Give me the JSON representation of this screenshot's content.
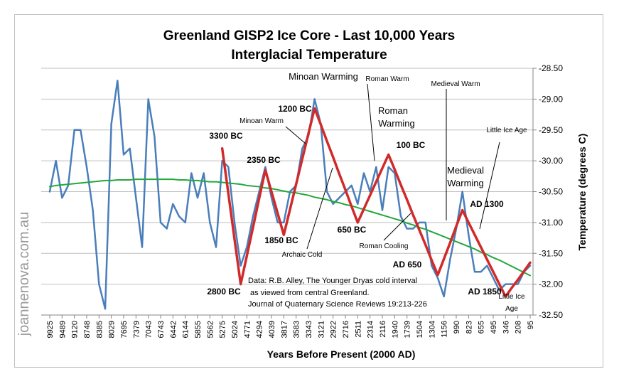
{
  "chart_data": {
    "type": "line",
    "title": [
      "Greenland GISP2 Ice Core - Last 10,000 Years",
      "Interglacial Temperature"
    ],
    "x_label": "Years Before Present (2000 AD)",
    "y_label": "Temperature (degrees C)",
    "watermark": "joannenova.com.au",
    "categories": [
      "9925",
      null,
      "9489",
      null,
      "9120",
      null,
      "8748",
      null,
      "8385",
      null,
      "8029",
      null,
      "7695",
      null,
      "7379",
      null,
      "7043",
      null,
      "6743",
      null,
      "6442",
      null,
      "6144",
      null,
      "5855",
      null,
      "5562",
      null,
      "5275",
      null,
      "5024",
      null,
      "4771",
      null,
      "4294",
      null,
      "4039",
      null,
      "3817",
      null,
      "3583",
      null,
      "3343",
      null,
      "3121",
      null,
      "2922",
      null,
      "2716",
      null,
      "2511",
      null,
      "2314",
      null,
      "2116",
      null,
      "1940",
      null,
      "1739",
      null,
      "1504",
      null,
      "1304",
      null,
      "1156",
      null,
      "990",
      null,
      "823",
      null,
      "655",
      null,
      "495",
      null,
      "346",
      null,
      "208",
      null,
      "95"
    ],
    "series": [
      {
        "color": "#4a7ebb",
        "width": 2.5,
        "values": [
          -30.5,
          -30.0,
          -30.6,
          -30.4,
          -29.5,
          -29.5,
          -30.1,
          -30.8,
          -32.0,
          -32.4,
          -29.4,
          -28.7,
          -29.9,
          -29.8,
          -30.6,
          -31.4,
          -29.0,
          -29.6,
          -31.0,
          -31.1,
          -30.7,
          -30.9,
          -31.0,
          -30.2,
          -30.6,
          -30.2,
          -31.0,
          -31.4,
          -30.0,
          -30.1,
          -31.0,
          -31.7,
          -31.4,
          -30.9,
          -30.5,
          -30.1,
          -30.6,
          -31.0,
          -31.0,
          -30.5,
          -30.4,
          -29.8,
          -29.6,
          -29.0,
          -29.4,
          -30.5,
          -30.7,
          -30.6,
          -30.5,
          -30.4,
          -30.7,
          -30.2,
          -30.5,
          -30.1,
          -30.8,
          -30.1,
          -30.2,
          -30.9,
          -31.1,
          -31.1,
          -31.0,
          -31.0,
          -31.7,
          -31.9,
          -32.2,
          -31.6,
          -31.1,
          -30.5,
          -31.2,
          -31.8,
          -31.8,
          -31.7,
          -31.9,
          -32.1,
          -32.0,
          -32.0,
          -32.0,
          -31.8,
          -31.7
        ]
      },
      {
        "color": "#22a83a",
        "width": 2,
        "values": [
          -30.42,
          -30.4,
          -30.39,
          -30.38,
          -30.37,
          -30.36,
          -30.35,
          -30.34,
          -30.33,
          -30.32,
          -30.32,
          -30.31,
          -30.31,
          -30.31,
          -30.3,
          -30.3,
          -30.3,
          -30.3,
          -30.3,
          -30.3,
          -30.3,
          -30.31,
          -30.31,
          -30.32,
          -30.32,
          -30.33,
          -30.34,
          -30.34,
          -30.35,
          -30.36,
          -30.37,
          -30.38,
          -30.4,
          -30.41,
          -30.42,
          -30.44,
          -30.45,
          -30.47,
          -30.49,
          -30.51,
          -30.52,
          -30.54,
          -30.56,
          -30.59,
          -30.61,
          -30.63,
          -30.66,
          -30.68,
          -30.71,
          -30.73,
          -30.76,
          -30.79,
          -30.82,
          -30.85,
          -30.88,
          -30.91,
          -30.94,
          -30.97,
          -31.01,
          -31.04,
          -31.08,
          -31.11,
          -31.15,
          -31.19,
          -31.23,
          -31.27,
          -31.31,
          -31.35,
          -31.39,
          -31.43,
          -31.48,
          -31.52,
          -31.57,
          -31.61,
          -31.66,
          -31.71,
          -31.76,
          -31.81,
          -31.86
        ]
      },
      {
        "color": "#d02a2a",
        "width": 3.5,
        "values": [
          null,
          null,
          null,
          null,
          null,
          null,
          null,
          null,
          null,
          null,
          null,
          null,
          null,
          null,
          null,
          null,
          null,
          null,
          null,
          null,
          null,
          null,
          null,
          null,
          null,
          null,
          null,
          null,
          -29.8,
          -30.53,
          -31.27,
          -32.0,
          -31.54,
          -31.08,
          -30.61,
          -30.15,
          -30.5,
          -30.85,
          -31.2,
          -30.79,
          -30.38,
          -29.97,
          -29.56,
          -29.15,
          -29.41,
          -29.68,
          -29.94,
          -30.21,
          -30.47,
          -30.74,
          -31.0,
          -30.78,
          -30.56,
          -30.34,
          -30.12,
          -29.9,
          -30.14,
          -30.39,
          -30.63,
          -30.88,
          -31.12,
          -31.36,
          -31.61,
          -31.85,
          -31.59,
          -31.33,
          -31.06,
          -30.8,
          -31.0,
          -31.2,
          -31.4,
          -31.6,
          -31.8,
          -32.0,
          -32.2,
          -32.06,
          -31.93,
          -31.79,
          -31.65
        ]
      }
    ],
    "ylim": [
      -32.5,
      -28.5
    ],
    "yticks": [
      {
        "value": -28.5,
        "label": "-28.50"
      },
      {
        "value": -29,
        "label": "-29.00"
      },
      {
        "value": -29.5,
        "label": "-29.50"
      },
      {
        "value": -30,
        "label": "-30.00"
      },
      {
        "value": -30.5,
        "label": "-30.50"
      },
      {
        "value": -31,
        "label": "-31.00"
      },
      {
        "value": -31.5,
        "label": "-31.50"
      },
      {
        "value": -32,
        "label": "-32.00"
      },
      {
        "value": -32.5,
        "label": "-32.50"
      }
    ],
    "grid": true,
    "annotations": [
      "Minoan Warming",
      "Roman Warm",
      "Medieval Warm",
      "1200 BC",
      "Minoan Warm",
      "Roman",
      "Warming",
      "3300 BC",
      "100 BC",
      "Little Ice Age",
      "2350 BC",
      "Medieval",
      "Warming",
      "AD 1300",
      "650 BC",
      "1850 BC",
      "Roman Cooling",
      "Archaic Cold",
      "AD 650",
      "Data: R.B. Alley,  The Younger Dryas cold interval",
      "as viewed from central Greenland.",
      "Journal of Quaternary  Science Reviews 19:213-226",
      "2800 BC",
      "AD 1850",
      "Little Ice",
      "Age"
    ]
  }
}
